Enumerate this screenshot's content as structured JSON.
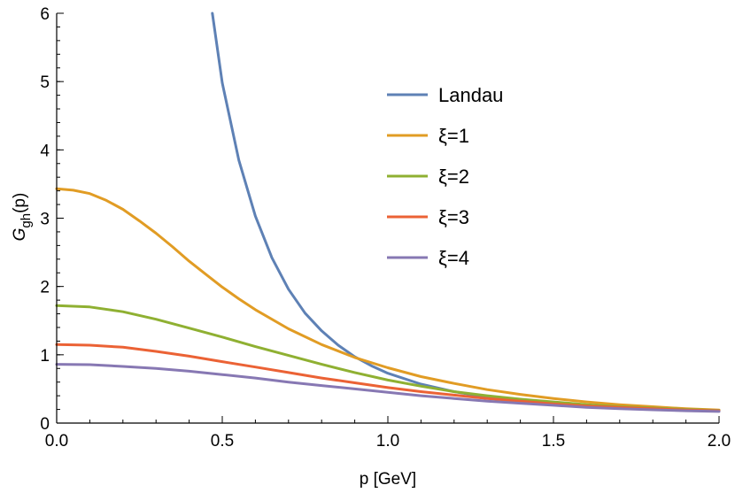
{
  "chart_data": {
    "type": "line",
    "xlabel": "p [GeV]",
    "ylabel_main": "G",
    "ylabel_sub": "gh",
    "ylabel_suffix": "(p)",
    "xlim": [
      0,
      2.0
    ],
    "ylim": [
      0,
      6
    ],
    "xticks": [
      "0.0",
      "0.5",
      "1.0",
      "1.5",
      "2.0"
    ],
    "yticks": [
      "0",
      "1",
      "2",
      "3",
      "4",
      "5",
      "6"
    ],
    "grid": false,
    "legend_position": "top-center",
    "series": [
      {
        "name": "Landau",
        "color": "#5e81b5",
        "x": [
          0.47,
          0.5,
          0.55,
          0.6,
          0.65,
          0.7,
          0.75,
          0.8,
          0.85,
          0.9,
          0.95,
          1.0,
          1.1,
          1.2,
          1.3,
          1.4,
          1.5,
          1.6,
          1.7,
          1.8,
          1.9,
          2.0
        ],
        "y": [
          6.0,
          4.98,
          3.85,
          3.03,
          2.42,
          1.96,
          1.61,
          1.35,
          1.14,
          0.97,
          0.84,
          0.73,
          0.57,
          0.46,
          0.38,
          0.33,
          0.29,
          0.26,
          0.235,
          0.215,
          0.2,
          0.185
        ]
      },
      {
        "name": "ξ=1",
        "color": "#e19c24",
        "x": [
          0.0,
          0.05,
          0.1,
          0.15,
          0.2,
          0.25,
          0.3,
          0.35,
          0.4,
          0.45,
          0.5,
          0.55,
          0.6,
          0.7,
          0.8,
          0.9,
          1.0,
          1.1,
          1.2,
          1.3,
          1.4,
          1.5,
          1.6,
          1.7,
          1.8,
          1.9,
          2.0
        ],
        "y": [
          3.43,
          3.41,
          3.36,
          3.26,
          3.13,
          2.96,
          2.78,
          2.58,
          2.37,
          2.18,
          1.99,
          1.82,
          1.66,
          1.38,
          1.15,
          0.96,
          0.81,
          0.68,
          0.58,
          0.49,
          0.42,
          0.36,
          0.31,
          0.27,
          0.24,
          0.21,
          0.19
        ]
      },
      {
        "name": "ξ=2",
        "color": "#8fb032",
        "x": [
          0.0,
          0.1,
          0.2,
          0.3,
          0.4,
          0.5,
          0.6,
          0.7,
          0.8,
          0.9,
          1.0,
          1.1,
          1.2,
          1.3,
          1.4,
          1.5,
          1.6,
          1.7,
          1.8,
          1.9,
          2.0
        ],
        "y": [
          1.72,
          1.7,
          1.63,
          1.52,
          1.39,
          1.26,
          1.12,
          0.99,
          0.86,
          0.74,
          0.63,
          0.54,
          0.46,
          0.4,
          0.35,
          0.31,
          0.27,
          0.24,
          0.22,
          0.2,
          0.185
        ]
      },
      {
        "name": "ξ=3",
        "color": "#eb6235",
        "x": [
          0.0,
          0.1,
          0.2,
          0.3,
          0.4,
          0.5,
          0.6,
          0.7,
          0.8,
          0.9,
          1.0,
          1.1,
          1.2,
          1.3,
          1.4,
          1.5,
          1.6,
          1.7,
          1.8,
          1.9,
          2.0
        ],
        "y": [
          1.15,
          1.14,
          1.11,
          1.05,
          0.98,
          0.9,
          0.82,
          0.74,
          0.66,
          0.59,
          0.52,
          0.46,
          0.41,
          0.36,
          0.32,
          0.28,
          0.25,
          0.23,
          0.21,
          0.19,
          0.18
        ]
      },
      {
        "name": "ξ=4",
        "color": "#8778b3",
        "x": [
          0.0,
          0.1,
          0.2,
          0.3,
          0.4,
          0.5,
          0.6,
          0.7,
          0.8,
          0.9,
          1.0,
          1.1,
          1.2,
          1.3,
          1.4,
          1.5,
          1.6,
          1.7,
          1.8,
          1.9,
          2.0
        ],
        "y": [
          0.86,
          0.855,
          0.83,
          0.8,
          0.76,
          0.71,
          0.66,
          0.6,
          0.55,
          0.5,
          0.45,
          0.4,
          0.36,
          0.32,
          0.29,
          0.26,
          0.23,
          0.21,
          0.195,
          0.18,
          0.17
        ]
      }
    ]
  }
}
